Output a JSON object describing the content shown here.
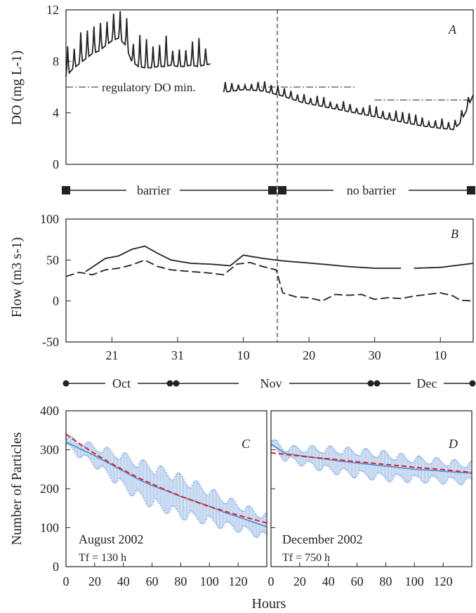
{
  "chart_data": [
    {
      "panel": "A",
      "type": "line",
      "ylabel": "DO (mg L-1)",
      "ylim": [
        0,
        12
      ],
      "yticks": [
        "0",
        "4",
        "8",
        "12"
      ],
      "xlim_dates": [
        "2002-10-14",
        "2002-12-15"
      ],
      "annotation": "regulatory DO min.",
      "regulatory_min": [
        {
          "start": "2002-10-14",
          "end": "2002-11-27",
          "value": 6
        },
        {
          "start": "2002-11-30",
          "end": "2002-12-15",
          "value": 5
        }
      ],
      "series": [
        {
          "style": "solid",
          "x": [
            "2002-10-14",
            "2002-10-15",
            "2002-10-16",
            "2002-10-17",
            "2002-10-18",
            "2002-10-19",
            "2002-10-20",
            "2002-10-21",
            "2002-10-22",
            "2002-10-23",
            "2002-10-24",
            "2002-10-25",
            "2002-10-26",
            "2002-10-27",
            "2002-10-28",
            "2002-10-29",
            "2002-10-30",
            "2002-10-31",
            "2002-11-01",
            "2002-11-02",
            "2002-11-03",
            "2002-11-04",
            "2002-11-05"
          ],
          "y": [
            6.8,
            7.4,
            7.8,
            8.2,
            8.6,
            8.8,
            9.2,
            9.6,
            9.8,
            9.3,
            8.0,
            7.6,
            7.5,
            7.5,
            7.6,
            7.6,
            7.7,
            7.6,
            7.6,
            7.7,
            7.6,
            7.7,
            7.8
          ]
        },
        {
          "style": "solid",
          "x": [
            "2002-11-07",
            "2002-11-10",
            "2002-11-13",
            "2002-11-16",
            "2002-11-19",
            "2002-11-22",
            "2002-11-25",
            "2002-11-28",
            "2002-12-01",
            "2002-12-04",
            "2002-12-07",
            "2002-12-10",
            "2002-12-12",
            "2002-12-13",
            "2002-12-14",
            "2002-12-15"
          ],
          "y": [
            5.6,
            5.8,
            5.7,
            5.3,
            4.8,
            4.5,
            4.2,
            3.9,
            3.6,
            3.3,
            3.0,
            2.8,
            2.7,
            3.2,
            4.2,
            5.4
          ]
        }
      ]
    },
    {
      "panel": "B",
      "type": "line",
      "ylabel": "Flow (m3 s-1)",
      "ylim": [
        -50,
        100
      ],
      "yticks": [
        "-50",
        "0",
        "50",
        "100"
      ],
      "xlim_dates": [
        "2002-10-14",
        "2002-12-15"
      ],
      "series": [
        {
          "style": "solid",
          "x": [
            "2002-10-17",
            "2002-10-20",
            "2002-10-22",
            "2002-10-24",
            "2002-10-26",
            "2002-10-28",
            "2002-10-30",
            "2002-11-02",
            "2002-11-05",
            "2002-11-08",
            "2002-11-10",
            "2002-11-13",
            "2002-11-16",
            "2002-11-19",
            "2002-11-22",
            "2002-11-26",
            "2002-11-30",
            "2002-12-04"
          ],
          "y": [
            36,
            52,
            55,
            63,
            67,
            58,
            50,
            46,
            45,
            43,
            56,
            52,
            49,
            47,
            45,
            42,
            40,
            40
          ]
        },
        {
          "style": "solid",
          "x": [
            "2002-12-06",
            "2002-12-10",
            "2002-12-15"
          ],
          "y": [
            40,
            41,
            46
          ]
        },
        {
          "style": "dashed",
          "x": [
            "2002-10-14",
            "2002-10-16",
            "2002-10-18",
            "2002-10-20",
            "2002-10-22",
            "2002-10-24",
            "2002-10-26",
            "2002-10-28",
            "2002-10-30",
            "2002-11-02",
            "2002-11-05",
            "2002-11-07",
            "2002-11-09",
            "2002-11-11",
            "2002-11-13",
            "2002-11-15",
            "2002-11-16",
            "2002-11-18",
            "2002-11-20",
            "2002-11-22",
            "2002-11-24",
            "2002-11-26",
            "2002-11-28",
            "2002-11-30",
            "2002-12-02",
            "2002-12-04",
            "2002-12-06",
            "2002-12-08",
            "2002-12-10",
            "2002-12-12",
            "2002-12-13",
            "2002-12-15"
          ],
          "y": [
            30,
            35,
            32,
            38,
            40,
            44,
            50,
            42,
            38,
            36,
            34,
            32,
            45,
            47,
            42,
            38,
            10,
            5,
            4,
            0,
            8,
            7,
            8,
            2,
            4,
            3,
            6,
            8,
            10,
            6,
            1,
            0
          ]
        }
      ]
    },
    {
      "panel": "C",
      "type": "line",
      "title": "August 2002",
      "tf_text": "Tf = 130 h",
      "xlabel": "Hours",
      "ylabel": "Number of Particles",
      "xlim": [
        0,
        140
      ],
      "ylim": [
        0,
        400
      ],
      "xticks": [
        "0",
        "20",
        "40",
        "60",
        "80",
        "100",
        "120"
      ],
      "yticks": [
        "0",
        "100",
        "200",
        "300",
        "400"
      ],
      "series": [
        {
          "name": "mean",
          "style": "solid",
          "color": "#5a8fd0",
          "x": [
            0,
            10,
            20,
            30,
            40,
            50,
            60,
            70,
            80,
            90,
            100,
            110,
            120,
            130,
            140
          ],
          "y": [
            320,
            302,
            285,
            265,
            245,
            225,
            208,
            195,
            180,
            168,
            155,
            140,
            128,
            115,
            102
          ]
        },
        {
          "name": "exponential fit",
          "style": "dashed",
          "color": "#e02020",
          "x": [
            0,
            10,
            20,
            30,
            40,
            50,
            60,
            70,
            80,
            90,
            100,
            110,
            120,
            130,
            140
          ],
          "y": [
            340,
            314,
            290,
            268,
            248,
            229,
            212,
            196,
            181,
            167,
            154,
            143,
            132,
            122,
            112
          ]
        }
      ],
      "error_band": {
        "color": "#8fb4e3",
        "half_width": {
          "x": [
            0,
            20,
            40,
            60,
            80,
            100,
            120,
            140
          ],
          "y": [
            12,
            25,
            45,
            55,
            55,
            45,
            35,
            30
          ]
        }
      }
    },
    {
      "panel": "D",
      "type": "line",
      "title": "December 2002",
      "tf_text": "Tf = 750 h",
      "xlim": [
        0,
        140
      ],
      "ylim": [
        0,
        400
      ],
      "xticks": [
        "0",
        "20",
        "40",
        "60",
        "80",
        "100",
        "120"
      ],
      "series": [
        {
          "name": "mean",
          "style": "solid",
          "color": "#5a8fd0",
          "x": [
            0,
            10,
            20,
            30,
            40,
            50,
            60,
            70,
            80,
            90,
            100,
            110,
            120,
            130,
            140
          ],
          "y": [
            315,
            290,
            285,
            280,
            275,
            270,
            266,
            262,
            258,
            254,
            250,
            248,
            245,
            242,
            240
          ]
        },
        {
          "name": "exponential fit",
          "style": "dashed",
          "color": "#e02020",
          "x": [
            0,
            10,
            20,
            30,
            40,
            50,
            60,
            70,
            80,
            90,
            100,
            110,
            120,
            130,
            140
          ],
          "y": [
            292,
            288,
            284,
            280,
            277,
            273,
            269,
            266,
            262,
            259,
            255,
            252,
            249,
            245,
            242
          ]
        }
      ],
      "error_band": {
        "color": "#8fb4e3",
        "half_width": {
          "x": [
            0,
            20,
            40,
            60,
            80,
            100,
            120,
            140
          ],
          "y": [
            10,
            20,
            30,
            35,
            35,
            30,
            28,
            25
          ]
        }
      }
    }
  ],
  "panel_labels": {
    "a": "A",
    "b": "B",
    "c": "C",
    "d": "D"
  },
  "barrier_bar": {
    "barrier": "barrier",
    "no_barrier": "no barrier"
  },
  "month_bar": {
    "oct": "Oct",
    "nov": "Nov",
    "dec": "Dec"
  },
  "date_ticks": [
    "21",
    "31",
    "10",
    "20",
    "30",
    "10"
  ]
}
